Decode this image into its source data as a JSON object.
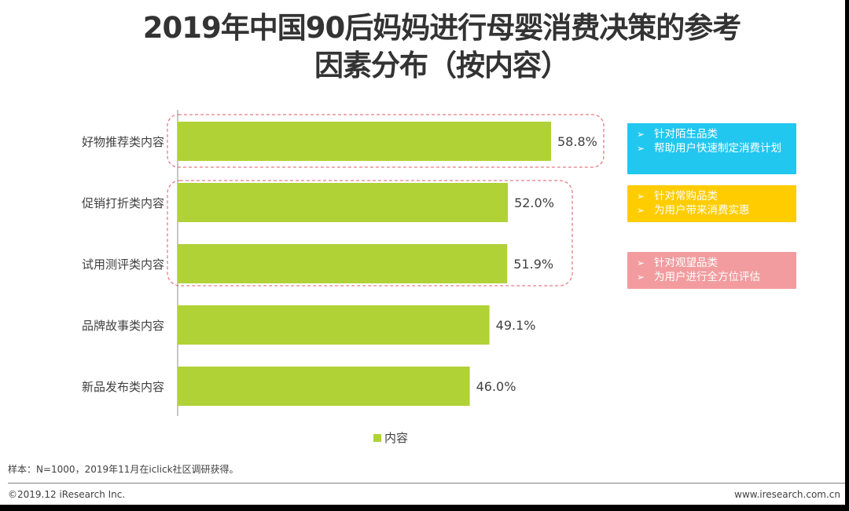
{
  "title": {
    "line1": "2019年中国90后妈妈进行母婴消费决策的参考",
    "line2": "因素分布（按内容）"
  },
  "chart_data": {
    "type": "bar",
    "orientation": "horizontal",
    "categories": [
      "好物推荐类内容",
      "促销打折类内容",
      "试用测评类内容",
      "品牌故事类内容",
      "新品发布类内容"
    ],
    "series": [
      {
        "name": "内容",
        "values": [
          58.8,
          52.0,
          51.9,
          49.1,
          46.0
        ],
        "labels": [
          "58.8%",
          "52.0%",
          "51.9%",
          "49.1%",
          "46.0%"
        ]
      }
    ],
    "xlim": [
      0,
      60
    ],
    "grid": false,
    "legend": "bottom-center",
    "bar_color": "#b0d236"
  },
  "notes": [
    {
      "color": "#22c7f0",
      "items": [
        "针对陌生品类",
        "帮助用户快速制定消费计划"
      ]
    },
    {
      "color": "#ffcc00",
      "items": [
        "针对常购品类",
        "为用户带来消费实惠"
      ]
    },
    {
      "color": "#f29c9f",
      "items": [
        "针对观望品类",
        "为用户进行全方位评估"
      ]
    }
  ],
  "highlight_color": "#e87c85",
  "footer": {
    "sample": "样本：N=1000，2019年11月在iclick社区调研获得。",
    "copyright": "©2019.12 iResearch Inc.",
    "website": "www.iresearch.com.cn"
  }
}
